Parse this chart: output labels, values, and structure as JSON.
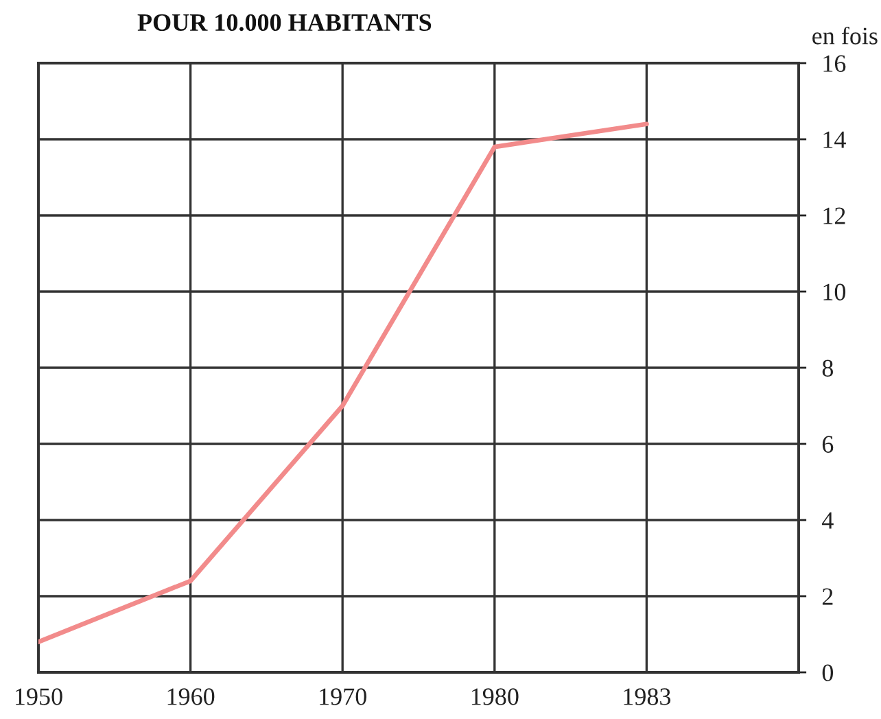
{
  "chart_data": {
    "type": "line",
    "title": "POUR 10.000 HABITANTS",
    "ylabel": "en fois",
    "categories": [
      "1950",
      "1960",
      "1970",
      "1980",
      "1983",
      null
    ],
    "series": [
      {
        "color": "#f28b8b",
        "values": [
          0.8,
          2.4,
          7.0,
          13.8,
          14.4,
          null
        ]
      }
    ],
    "ylim": [
      0,
      16
    ],
    "yticks": [
      0,
      2,
      4,
      6,
      8,
      10,
      12,
      14,
      16
    ],
    "grid": true,
    "marker": "none",
    "line_style": "solid"
  }
}
